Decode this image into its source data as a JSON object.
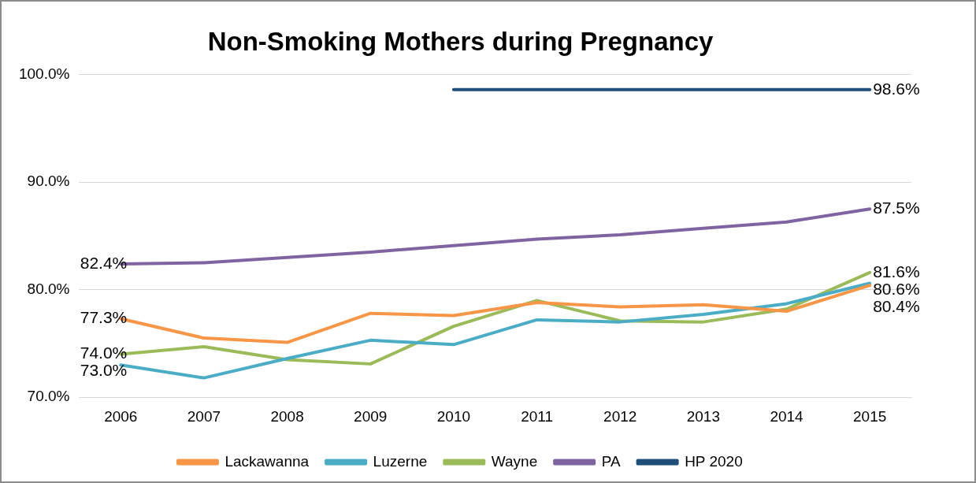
{
  "chart_data": {
    "type": "line",
    "title": "Non-Smoking Mothers during Pregnancy",
    "categories": [
      "2006",
      "2007",
      "2008",
      "2009",
      "2010",
      "2011",
      "2012",
      "2013",
      "2014",
      "2015"
    ],
    "series": [
      {
        "name": "Lackawanna",
        "color": "#f79646",
        "values": [
          77.3,
          75.5,
          75.1,
          77.8,
          77.6,
          78.8,
          78.4,
          78.6,
          78.0,
          80.4
        ],
        "value_labels": [
          "77.3%",
          null,
          null,
          null,
          null,
          null,
          null,
          null,
          null,
          "80.4%"
        ]
      },
      {
        "name": "Luzerne",
        "color": "#4bacc6",
        "values": [
          73.0,
          71.8,
          73.6,
          75.3,
          74.9,
          77.2,
          77.0,
          77.7,
          78.7,
          80.6
        ],
        "value_labels": [
          "73.0%",
          null,
          null,
          null,
          null,
          null,
          null,
          null,
          null,
          "80.6%"
        ]
      },
      {
        "name": "Wayne",
        "color": "#9bbb59",
        "values": [
          74.0,
          74.7,
          73.5,
          73.1,
          76.6,
          79.0,
          77.1,
          77.0,
          78.2,
          81.6
        ],
        "value_labels": [
          "74.0%",
          null,
          null,
          null,
          null,
          null,
          null,
          null,
          null,
          "81.6%"
        ]
      },
      {
        "name": "PA",
        "color": "#8064a2",
        "values": [
          82.4,
          82.5,
          83.0,
          83.5,
          84.1,
          84.7,
          85.1,
          85.7,
          86.3,
          87.5
        ],
        "value_labels": [
          "82.4%",
          null,
          null,
          null,
          null,
          null,
          null,
          null,
          null,
          "87.5%"
        ]
      },
      {
        "name": "HP 2020",
        "color": "#1f4e79",
        "values": [
          null,
          null,
          null,
          null,
          98.6,
          98.6,
          98.6,
          98.6,
          98.6,
          98.6
        ],
        "value_labels": [
          null,
          null,
          null,
          null,
          null,
          null,
          null,
          null,
          null,
          "98.6%"
        ]
      }
    ],
    "ylim": [
      70,
      100
    ],
    "yticks": [
      {
        "value": 70,
        "label": "70.0%"
      },
      {
        "value": 80,
        "label": "80.0%"
      },
      {
        "value": 90,
        "label": "90.0%"
      },
      {
        "value": 100,
        "label": "100.0%"
      }
    ],
    "grid": "y",
    "legend": "bottom",
    "marker": "none",
    "line_style": "solid"
  }
}
